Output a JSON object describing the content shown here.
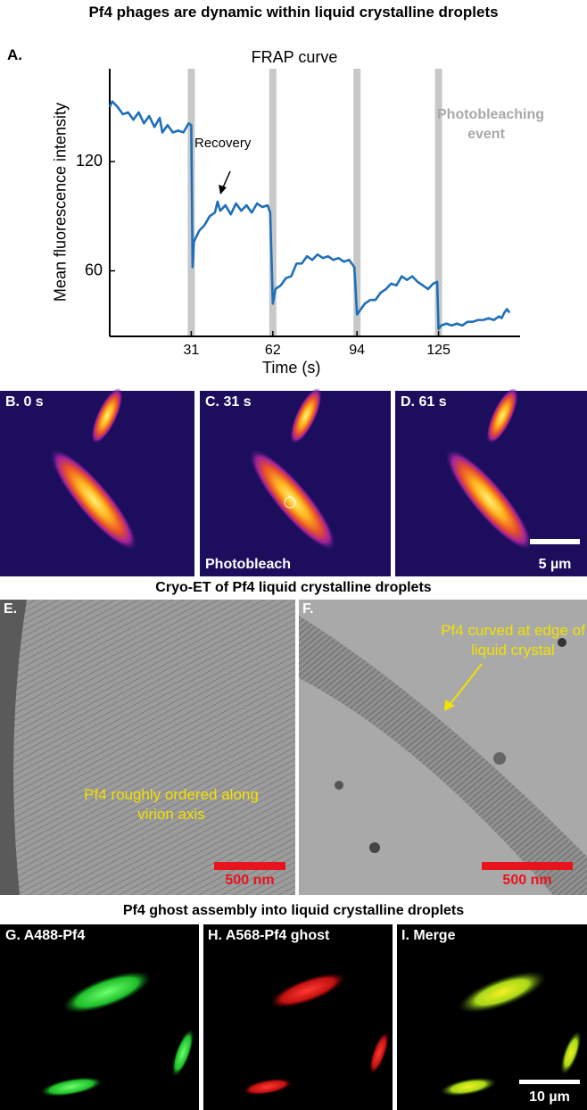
{
  "title": "Pf4 phages are dynamic within liquid crystalline droplets",
  "chart_data": {
    "type": "line",
    "panel_label": "A.",
    "title": "FRAP curve",
    "x_label": "Time (s)",
    "y_label": "Mean fluorescence intensity",
    "x": [
      0,
      1,
      3,
      5,
      7,
      9,
      11,
      13,
      15,
      17,
      19,
      20,
      22,
      24,
      26,
      28,
      30,
      31,
      31.5,
      32,
      34,
      36,
      38,
      40,
      41,
      42,
      44,
      46,
      48,
      50,
      52,
      54,
      56,
      58,
      60,
      61,
      62,
      63,
      65,
      67,
      69,
      71,
      73,
      75,
      77,
      79,
      81,
      83,
      85,
      87,
      89,
      91,
      93,
      94,
      95,
      97,
      99,
      101,
      103,
      105,
      107,
      109,
      111,
      113,
      115,
      117,
      119,
      121,
      123,
      124.5,
      125,
      126,
      128,
      130,
      132,
      134,
      136,
      138,
      140,
      142,
      144,
      146,
      148,
      149,
      150,
      151,
      152
    ],
    "values": [
      150,
      153,
      150,
      146,
      147,
      143,
      147,
      141,
      145,
      139,
      144,
      136,
      140,
      136,
      137,
      136,
      141,
      140,
      62,
      76,
      82,
      85,
      90,
      92,
      98,
      93,
      96,
      91,
      97,
      93,
      96,
      92,
      97,
      95,
      96,
      92,
      42,
      50,
      52,
      56,
      57,
      64,
      64,
      68,
      66,
      69,
      67,
      68,
      66,
      67,
      65,
      66,
      62,
      36,
      38,
      42,
      44,
      44,
      48,
      50,
      53,
      52,
      57,
      55,
      57,
      54,
      52,
      50,
      53,
      54,
      28,
      30,
      31,
      30,
      31,
      30,
      32,
      32,
      33,
      33,
      34,
      33,
      35,
      34,
      37,
      39,
      37
    ],
    "color": "#1f6fb8",
    "event_color": "#c8c8c8",
    "event_label_color": "#a8a8a8",
    "xlim": [
      0,
      156
    ],
    "ylim": [
      24,
      171
    ],
    "xticks": [
      31,
      62,
      94,
      125
    ],
    "yticks": [
      60,
      120
    ],
    "annotations": [
      "Recovery",
      "Photobleaching event"
    ]
  },
  "fluorescence_panels": [
    {
      "label": "B. 0 s"
    },
    {
      "label": "C. 31 s",
      "annotation": "Photobleach"
    },
    {
      "label": "D. 61 s",
      "scale_bar": "5 µm"
    }
  ],
  "cryo_et": {
    "title": "Cryo-ET of Pf4 liquid crystalline droplets",
    "panels": [
      {
        "label": "E.",
        "annotation": "Pf4 roughly ordered along virion axis",
        "scale_bar": "500 nm"
      },
      {
        "label": "F.",
        "annotation": "Pf4 curved at edge of liquid crystal",
        "scale_bar": "500 nm"
      }
    ]
  },
  "ghost_assembly": {
    "title": "Pf4 ghost assembly into liquid crystalline droplets",
    "panels": [
      {
        "label": "G. A488-Pf4"
      },
      {
        "label": "H. A568-Pf4 ghost"
      },
      {
        "label": "I. Merge",
        "scale_bar": "10 µm"
      }
    ]
  }
}
